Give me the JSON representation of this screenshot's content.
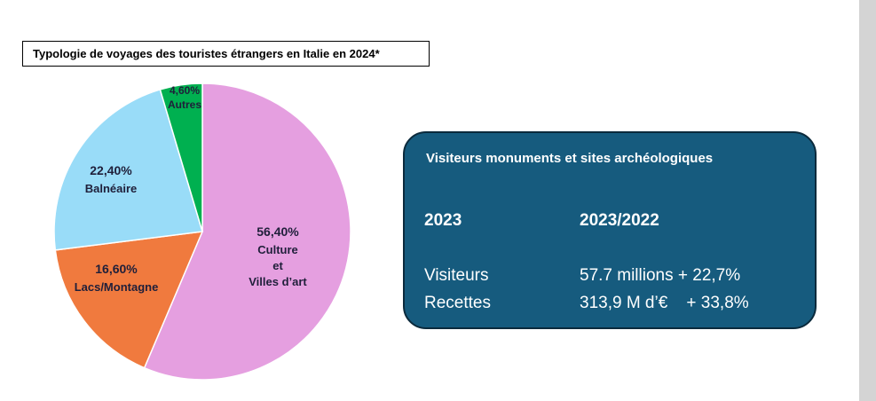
{
  "chart_data": {
    "type": "pie",
    "title": "Typologie de voyages des touristes étrangers en Italie en 2024*",
    "slices": [
      {
        "value": 56.4,
        "value_label": "56,40%",
        "label_lines": [
          "Culture",
          "et",
          "Villes d’art"
        ],
        "color": "#e59fe0"
      },
      {
        "value": 16.6,
        "value_label": "16,60%",
        "label_lines": [
          "Lacs/Montagne"
        ],
        "color": "#f07a3e"
      },
      {
        "value": 22.4,
        "value_label": "22,40%",
        "label_lines": [
          "Balnéaire"
        ],
        "color": "#99dcf8"
      },
      {
        "value": 4.6,
        "value_label": "4,60%",
        "label_lines": [
          "Autres"
        ],
        "color": "#00b050"
      }
    ]
  },
  "info_box": {
    "title": "Visiteurs monuments et sites archéologiques",
    "col1_header": "2023",
    "col2_header": "2023/2022",
    "rows": [
      {
        "label": "Visiteurs",
        "value": "57.7 millions + 22,7%"
      },
      {
        "label": "Recettes",
        "value": "313,9 M d’€    + 33,8%"
      }
    ]
  },
  "colors": {
    "box_fill": "#165b7e",
    "box_border": "#0b2a3c"
  }
}
